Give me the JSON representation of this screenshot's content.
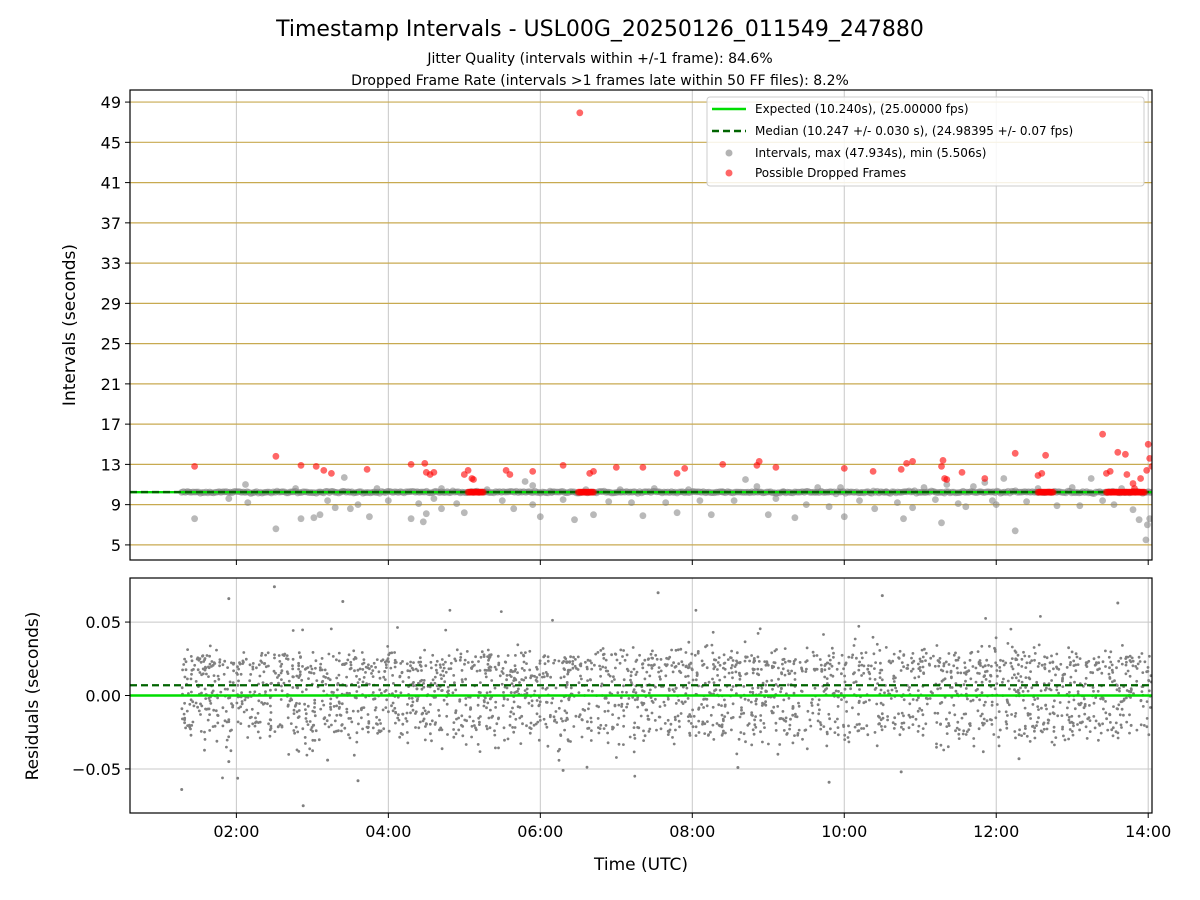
{
  "chart_data": {
    "type": "scatter",
    "title": "Timestamp Intervals - USL00G_20250126_011549_247880",
    "subtitle_lines": [
      "Jitter Quality (intervals within +/-1 frame): 84.6%",
      "Dropped Frame Rate (intervals >1 frames late within 50 FF files): 8.2%"
    ],
    "xlabel": "Time (UTC)",
    "x_unit": "hours UTC",
    "xlim": [
      0.6,
      14.05
    ],
    "x_ticks": [
      {
        "value": 2,
        "label": "02:00"
      },
      {
        "value": 4,
        "label": "04:00"
      },
      {
        "value": 6,
        "label": "06:00"
      },
      {
        "value": 8,
        "label": "08:00"
      },
      {
        "value": 10,
        "label": "10:00"
      },
      {
        "value": 12,
        "label": "12:00"
      },
      {
        "value": 14,
        "label": "14:00"
      }
    ],
    "top_panel": {
      "ylabel": "Intervals (seconds)",
      "ylim": [
        3.5,
        50.2
      ],
      "y_ticks": [
        {
          "value": 5,
          "label": "5"
        },
        {
          "value": 9,
          "label": "9"
        },
        {
          "value": 13,
          "label": "13"
        },
        {
          "value": 17,
          "label": "17"
        },
        {
          "value": 21,
          "label": "21"
        },
        {
          "value": 25,
          "label": "25"
        },
        {
          "value": 29,
          "label": "29"
        },
        {
          "value": 33,
          "label": "33"
        },
        {
          "value": 37,
          "label": "37"
        },
        {
          "value": 41,
          "label": "41"
        },
        {
          "value": 45,
          "label": "45"
        },
        {
          "value": 49,
          "label": "49"
        }
      ],
      "expected_interval": 10.24,
      "median_interval": 10.247,
      "legend": {
        "position": "top-right",
        "entries": [
          "Expected (10.240s), (25.00000 fps)",
          "Median (10.247 +/- 0.030 s), (24.98395 +/- 0.07 fps)",
          "Intervals, max (47.934s), min (5.506s)",
          "Possible Dropped Frames"
        ]
      },
      "max_interval": 47.934,
      "min_interval": 5.506,
      "gray_outliers": [
        [
          1.45,
          7.6
        ],
        [
          1.9,
          9.6
        ],
        [
          2.12,
          11.0
        ],
        [
          2.15,
          9.2
        ],
        [
          2.52,
          6.6
        ],
        [
          2.78,
          10.6
        ],
        [
          2.85,
          7.6
        ],
        [
          3.02,
          7.7
        ],
        [
          3.1,
          8.0
        ],
        [
          3.2,
          9.4
        ],
        [
          3.3,
          8.7
        ],
        [
          3.42,
          11.7
        ],
        [
          3.5,
          8.6
        ],
        [
          3.6,
          9.0
        ],
        [
          3.75,
          7.8
        ],
        [
          3.85,
          10.6
        ],
        [
          4.0,
          9.4
        ],
        [
          4.3,
          7.6
        ],
        [
          4.4,
          9.1
        ],
        [
          4.46,
          7.3
        ],
        [
          4.5,
          8.1
        ],
        [
          4.6,
          9.6
        ],
        [
          4.7,
          10.6
        ],
        [
          4.9,
          9.1
        ],
        [
          5.0,
          8.2
        ],
        [
          5.3,
          10.5
        ],
        [
          5.5,
          9.4
        ],
        [
          5.65,
          8.6
        ],
        [
          5.8,
          11.3
        ],
        [
          5.9,
          9.0
        ],
        [
          6.0,
          7.8
        ],
        [
          6.15,
          10.2
        ],
        [
          6.3,
          9.5
        ],
        [
          6.45,
          7.5
        ],
        [
          6.6,
          10.5
        ],
        [
          6.7,
          8.0
        ],
        [
          6.9,
          9.3
        ],
        [
          7.05,
          10.5
        ],
        [
          7.2,
          9.2
        ],
        [
          7.35,
          7.9
        ],
        [
          7.5,
          10.6
        ],
        [
          7.65,
          9.2
        ],
        [
          7.8,
          8.2
        ],
        [
          7.95,
          10.5
        ],
        [
          8.1,
          9.4
        ],
        [
          8.25,
          8.0
        ],
        [
          8.4,
          10.3
        ],
        [
          8.55,
          9.4
        ],
        [
          8.7,
          11.5
        ],
        [
          8.85,
          10.8
        ],
        [
          9.0,
          8.0
        ],
        [
          9.2,
          10.3
        ],
        [
          9.35,
          7.7
        ],
        [
          9.5,
          9.0
        ],
        [
          9.65,
          10.7
        ],
        [
          9.8,
          8.8
        ],
        [
          9.95,
          10.7
        ],
        [
          10.0,
          7.8
        ],
        [
          10.2,
          9.4
        ],
        [
          10.4,
          8.6
        ],
        [
          10.55,
          10.3
        ],
        [
          10.7,
          9.2
        ],
        [
          10.78,
          7.6
        ],
        [
          10.9,
          8.7
        ],
        [
          11.05,
          10.7
        ],
        [
          11.2,
          9.5
        ],
        [
          11.28,
          7.2
        ],
        [
          11.35,
          11.0
        ],
        [
          11.5,
          9.1
        ],
        [
          11.6,
          8.8
        ],
        [
          11.7,
          10.8
        ],
        [
          11.85,
          11.2
        ],
        [
          12.0,
          9.0
        ],
        [
          12.1,
          11.6
        ],
        [
          12.25,
          6.4
        ],
        [
          12.4,
          9.3
        ],
        [
          12.55,
          10.6
        ],
        [
          12.8,
          8.9
        ],
        [
          13.0,
          10.7
        ],
        [
          13.1,
          8.9
        ],
        [
          13.25,
          11.6
        ],
        [
          13.4,
          9.4
        ],
        [
          13.55,
          9.0
        ],
        [
          13.7,
          10.2
        ],
        [
          13.8,
          8.5
        ],
        [
          13.88,
          7.5
        ],
        [
          13.97,
          5.5
        ],
        [
          13.99,
          7.0
        ],
        [
          14.02,
          7.6
        ],
        [
          4.7,
          8.6
        ],
        [
          5.9,
          10.9
        ],
        [
          9.1,
          9.6
        ],
        [
          11.95,
          9.4
        ],
        [
          13.65,
          10.6
        ]
      ],
      "red_points": [
        [
          1.45,
          12.8
        ],
        [
          2.52,
          13.8
        ],
        [
          2.85,
          12.9
        ],
        [
          3.05,
          12.8
        ],
        [
          3.15,
          12.4
        ],
        [
          3.25,
          12.1
        ],
        [
          3.72,
          12.5
        ],
        [
          4.3,
          13.0
        ],
        [
          4.48,
          13.1
        ],
        [
          4.5,
          12.2
        ],
        [
          4.55,
          12.0
        ],
        [
          4.6,
          12.2
        ],
        [
          5.0,
          12.0
        ],
        [
          5.05,
          12.4
        ],
        [
          5.1,
          11.6
        ],
        [
          5.12,
          11.5
        ],
        [
          5.55,
          12.4
        ],
        [
          5.6,
          12.0
        ],
        [
          5.9,
          12.3
        ],
        [
          6.3,
          12.9
        ],
        [
          6.65,
          12.1
        ],
        [
          6.7,
          12.3
        ],
        [
          7.0,
          12.7
        ],
        [
          7.35,
          12.7
        ],
        [
          7.8,
          12.1
        ],
        [
          7.9,
          12.6
        ],
        [
          8.4,
          13.0
        ],
        [
          8.85,
          12.9
        ],
        [
          8.88,
          13.3
        ],
        [
          9.1,
          12.7
        ],
        [
          10.0,
          12.6
        ],
        [
          10.38,
          12.3
        ],
        [
          10.75,
          12.5
        ],
        [
          10.82,
          13.1
        ],
        [
          10.9,
          13.3
        ],
        [
          11.28,
          12.8
        ],
        [
          11.3,
          13.4
        ],
        [
          11.32,
          11.6
        ],
        [
          11.35,
          11.5
        ],
        [
          11.55,
          12.2
        ],
        [
          11.85,
          11.6
        ],
        [
          12.25,
          14.1
        ],
        [
          12.55,
          11.9
        ],
        [
          12.6,
          12.1
        ],
        [
          12.65,
          13.9
        ],
        [
          13.4,
          16.0
        ],
        [
          13.45,
          12.1
        ],
        [
          13.5,
          12.3
        ],
        [
          13.6,
          14.2
        ],
        [
          13.7,
          14.0
        ],
        [
          13.72,
          12.0
        ],
        [
          13.8,
          11.1
        ],
        [
          13.82,
          10.6
        ],
        [
          13.9,
          11.6
        ],
        [
          14.0,
          15.0
        ],
        [
          14.02,
          13.6
        ],
        [
          14.05,
          12.8
        ],
        [
          13.98,
          12.4
        ],
        [
          6.52,
          47.934
        ]
      ],
      "red_clusters": [
        {
          "x_start": 5.05,
          "x_end": 5.25,
          "y": 10.24
        },
        {
          "x_start": 6.5,
          "x_end": 6.7,
          "y": 10.24
        },
        {
          "x_start": 12.55,
          "x_end": 12.75,
          "y": 10.24
        },
        {
          "x_start": 13.45,
          "x_end": 13.95,
          "y": 10.24
        }
      ],
      "series_start": 1.28,
      "series_end": 14.05
    },
    "bottom_panel": {
      "ylabel": "Residuals (seconds)",
      "ylim": [
        -0.08,
        0.08
      ],
      "y_ticks": [
        {
          "value": 0.05,
          "label": "0.05"
        },
        {
          "value": 0.0,
          "label": "0.00"
        },
        {
          "value": -0.05,
          "label": "−0.05"
        }
      ],
      "expected_residual": 0.0,
      "median_residual": 0.007,
      "residual_spread": 0.02,
      "residual_outliers": [
        [
          1.28,
          -0.064
        ],
        [
          1.9,
          0.066
        ],
        [
          1.9,
          -0.045
        ],
        [
          2.5,
          0.074
        ],
        [
          2.88,
          -0.075
        ],
        [
          3.2,
          -0.044
        ],
        [
          3.4,
          0.064
        ],
        [
          3.6,
          -0.058
        ],
        [
          6.3,
          -0.051
        ],
        [
          7.55,
          0.07
        ],
        [
          8.6,
          -0.049
        ],
        [
          9.8,
          -0.059
        ],
        [
          10.5,
          0.068
        ],
        [
          10.75,
          -0.052
        ],
        [
          13.6,
          0.063
        ],
        [
          12.3,
          -0.043
        ]
      ]
    },
    "colors": {
      "expected": "#00dd00",
      "median": "#006400",
      "intervals": "#808080",
      "dropped": "#ff0000",
      "top_grid": "#c8aa50",
      "vertical_grid": "#c8c8c8"
    }
  }
}
